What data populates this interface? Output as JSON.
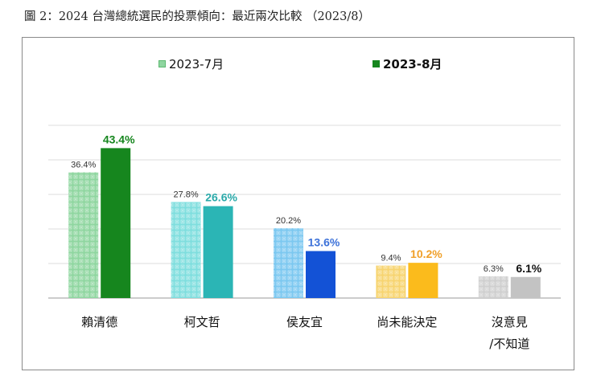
{
  "figure_title": "圖 2：2024 台灣總統選民的投票傾向：最近兩次比較 （2023/8）",
  "chart_data": {
    "type": "bar",
    "categories": [
      [
        "賴清德"
      ],
      [
        "柯文哲"
      ],
      [
        "侯友宜"
      ],
      [
        "尚未能決定"
      ],
      [
        "沒意見",
        "/不知道"
      ]
    ],
    "series": [
      {
        "name": "2023-7月",
        "values": [
          36.4,
          27.8,
          20.2,
          9.4,
          6.3
        ],
        "labels": [
          "36.4%",
          "27.8%",
          "20.2%",
          "9.4%",
          "6.3%"
        ]
      },
      {
        "name": "2023-8月",
        "values": [
          43.4,
          26.6,
          13.6,
          10.2,
          6.1
        ],
        "labels": [
          "43.4%",
          "26.6%",
          "13.6%",
          "10.2%",
          "6.1%"
        ]
      }
    ],
    "ylim": [
      0,
      50
    ],
    "grid": true,
    "legend_position": "top",
    "colors": {
      "series_2023_07": [
        "#8fd6a0",
        "#7fdede",
        "#7cc8f0",
        "#f7d470",
        "#cfcfcf"
      ],
      "series_2023_08": [
        "#16861e",
        "#2bb5b5",
        "#1352d6",
        "#fbbb1c",
        "#c3c3c3"
      ],
      "label_2023_08": [
        "#16861e",
        "#2aa9a9",
        "#3d72d9",
        "#f0a02a",
        "#111111"
      ],
      "label_2023_07": "#333333",
      "grid": "#dcdcdc",
      "axis": "#999999"
    }
  }
}
